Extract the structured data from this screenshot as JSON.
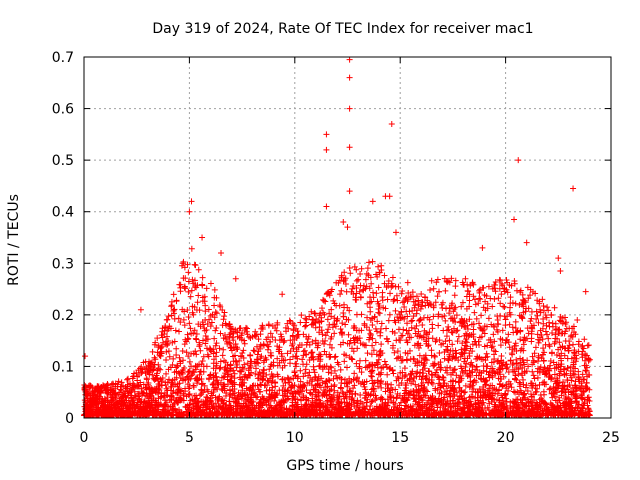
{
  "chart_data": {
    "type": "scatter",
    "title": "Day 319 of 2024, Rate Of TEC Index for receiver mac1",
    "xlabel": "GPS time / hours",
    "ylabel": "ROTI / TECUs",
    "xlim": [
      0,
      25
    ],
    "ylim": [
      0,
      0.7
    ],
    "xticks": [
      "0",
      "5",
      "10",
      "15",
      "20",
      "25"
    ],
    "yticks": [
      "0",
      "0.1",
      "0.2",
      "0.3",
      "0.4",
      "0.5",
      "0.6",
      "0.7"
    ],
    "grid": true,
    "marker": "+",
    "color": "#ff0000",
    "outliers": [
      {
        "x": 0.05,
        "y": 0.12
      },
      {
        "x": 2.7,
        "y": 0.21
      },
      {
        "x": 5.1,
        "y": 0.42
      },
      {
        "x": 5.0,
        "y": 0.4
      },
      {
        "x": 5.6,
        "y": 0.35
      },
      {
        "x": 6.5,
        "y": 0.32
      },
      {
        "x": 7.2,
        "y": 0.27
      },
      {
        "x": 9.4,
        "y": 0.24
      },
      {
        "x": 11.5,
        "y": 0.55
      },
      {
        "x": 11.5,
        "y": 0.52
      },
      {
        "x": 11.5,
        "y": 0.41
      },
      {
        "x": 12.6,
        "y": 0.695
      },
      {
        "x": 12.6,
        "y": 0.66
      },
      {
        "x": 12.6,
        "y": 0.6
      },
      {
        "x": 12.6,
        "y": 0.525
      },
      {
        "x": 12.6,
        "y": 0.44
      },
      {
        "x": 12.3,
        "y": 0.38
      },
      {
        "x": 12.5,
        "y": 0.37
      },
      {
        "x": 13.7,
        "y": 0.42
      },
      {
        "x": 14.6,
        "y": 0.57
      },
      {
        "x": 14.5,
        "y": 0.43
      },
      {
        "x": 14.3,
        "y": 0.43
      },
      {
        "x": 14.8,
        "y": 0.36
      },
      {
        "x": 18.9,
        "y": 0.33
      },
      {
        "x": 20.4,
        "y": 0.385
      },
      {
        "x": 20.6,
        "y": 0.5
      },
      {
        "x": 21.0,
        "y": 0.34
      },
      {
        "x": 22.5,
        "y": 0.31
      },
      {
        "x": 22.6,
        "y": 0.285
      },
      {
        "x": 23.2,
        "y": 0.445
      },
      {
        "x": 23.8,
        "y": 0.245
      },
      {
        "x": 23.4,
        "y": 0.19
      }
    ],
    "envelope": [
      {
        "x": 0.0,
        "y": 0.06
      },
      {
        "x": 1.0,
        "y": 0.06
      },
      {
        "x": 2.0,
        "y": 0.07
      },
      {
        "x": 3.0,
        "y": 0.11
      },
      {
        "x": 4.0,
        "y": 0.2
      },
      {
        "x": 5.0,
        "y": 0.34
      },
      {
        "x": 5.5,
        "y": 0.3
      },
      {
        "x": 6.0,
        "y": 0.26
      },
      {
        "x": 7.0,
        "y": 0.18
      },
      {
        "x": 8.0,
        "y": 0.17
      },
      {
        "x": 9.0,
        "y": 0.18
      },
      {
        "x": 10.0,
        "y": 0.19
      },
      {
        "x": 11.0,
        "y": 0.21
      },
      {
        "x": 12.0,
        "y": 0.27
      },
      {
        "x": 13.0,
        "y": 0.3
      },
      {
        "x": 14.0,
        "y": 0.3
      },
      {
        "x": 15.0,
        "y": 0.26
      },
      {
        "x": 16.0,
        "y": 0.26
      },
      {
        "x": 17.0,
        "y": 0.27
      },
      {
        "x": 18.0,
        "y": 0.28
      },
      {
        "x": 19.0,
        "y": 0.25
      },
      {
        "x": 20.0,
        "y": 0.27
      },
      {
        "x": 21.0,
        "y": 0.25
      },
      {
        "x": 22.0,
        "y": 0.22
      },
      {
        "x": 23.0,
        "y": 0.19
      },
      {
        "x": 24.0,
        "y": 0.14
      }
    ]
  }
}
